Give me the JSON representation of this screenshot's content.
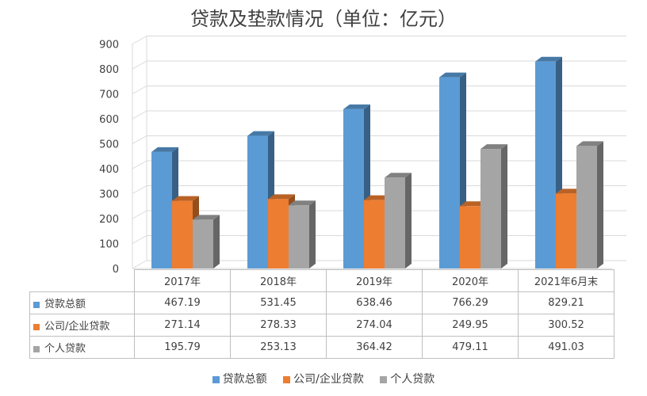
{
  "chart_data": {
    "type": "bar",
    "title": "贷款及垫款情况（单位：亿元）",
    "categories": [
      "2017年",
      "2018年",
      "2019年",
      "2020年",
      "2021年6月末"
    ],
    "series": [
      {
        "name": "贷款总额",
        "color": "#5b9bd5",
        "values": [
          467.19,
          531.45,
          638.46,
          766.29,
          829.21
        ]
      },
      {
        "name": "公司/企业贷款",
        "color": "#ed7d31",
        "values": [
          271.14,
          278.33,
          274.04,
          249.95,
          300.52
        ]
      },
      {
        "name": "个人贷款",
        "color": "#a5a5a5",
        "values": [
          195.79,
          253.13,
          364.42,
          479.11,
          491.03
        ]
      }
    ],
    "yticks": [
      "0",
      "100",
      "200",
      "300",
      "400",
      "500",
      "600",
      "700",
      "800",
      "900"
    ],
    "ylim": [
      0,
      900
    ],
    "grid": true,
    "legend": "bottom",
    "table": {
      "values_text": [
        [
          "467.19",
          "531.45",
          "638.46",
          "766.29",
          "829.21"
        ],
        [
          "271.14",
          "278.33",
          "274.04",
          "249.95",
          "300.52"
        ],
        [
          "195.79",
          "253.13",
          "364.42",
          "479.11",
          "491.03"
        ]
      ]
    }
  }
}
